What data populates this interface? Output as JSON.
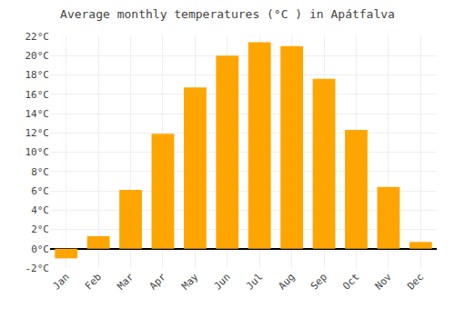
{
  "chart_data": {
    "type": "bar",
    "title": "Average monthly temperatures (°C ) in Apátfalva",
    "categories": [
      "Jan",
      "Feb",
      "Mar",
      "Apr",
      "May",
      "Jun",
      "Jul",
      "Aug",
      "Sep",
      "Oct",
      "Nov",
      "Dec"
    ],
    "values": [
      -1.0,
      1.3,
      6.1,
      11.9,
      16.7,
      20.0,
      21.4,
      21.0,
      17.6,
      12.3,
      6.4,
      0.7
    ],
    "color": "#FFA500",
    "ylim": [
      -2,
      22
    ],
    "yticks": [
      {
        "value": -2,
        "label": "-2°C"
      },
      {
        "value": 0,
        "label": "0°C"
      },
      {
        "value": 2,
        "label": "2°C"
      },
      {
        "value": 4,
        "label": "4°C"
      },
      {
        "value": 6,
        "label": "6°C"
      },
      {
        "value": 8,
        "label": "8°C"
      },
      {
        "value": 10,
        "label": "10°C"
      },
      {
        "value": 12,
        "label": "12°C"
      },
      {
        "value": 14,
        "label": "14°C"
      },
      {
        "value": 16,
        "label": "16°C"
      },
      {
        "value": 18,
        "label": "18°C"
      },
      {
        "value": 20,
        "label": "20°C"
      },
      {
        "value": 22,
        "label": "22°C"
      }
    ],
    "grid": true
  }
}
